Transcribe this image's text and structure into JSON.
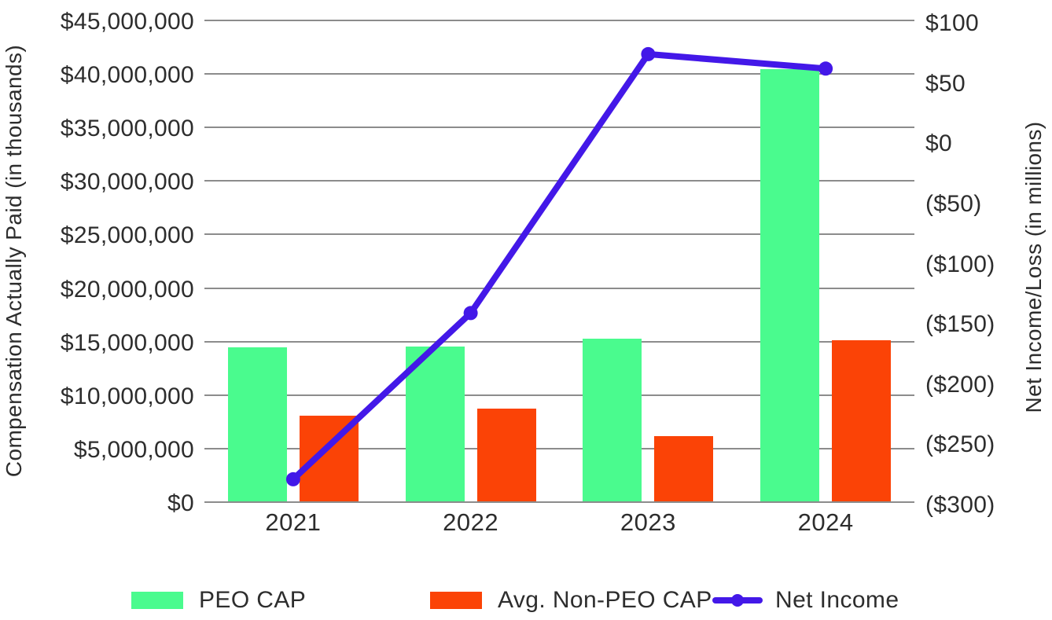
{
  "chart_data": {
    "type": "bar+line combo",
    "categories": [
      "2021",
      "2022",
      "2023",
      "2024"
    ],
    "series": [
      {
        "name": "PEO CAP",
        "type": "bar",
        "axis": "left",
        "color": "#4AFB8E",
        "values": [
          14450000,
          14550000,
          15300000,
          40450000
        ]
      },
      {
        "name": "Avg. Non-PEO CAP",
        "type": "bar",
        "axis": "left",
        "color": "#FB4306",
        "values": [
          8100000,
          8700000,
          6150000,
          15150000
        ]
      },
      {
        "name": "Net Income",
        "type": "line",
        "axis": "right",
        "color": "#4318E8",
        "values": [
          -281,
          -143,
          72,
          60
        ]
      }
    ],
    "left_axis": {
      "label": "Compensation Actually Paid (in thousands)",
      "min": 0,
      "max": 45000000,
      "step": 5000000,
      "tick_labels_top_to_bottom": [
        "$45,000,000",
        "$40,000,000",
        "$35,000,000",
        "$30,000,000",
        "$25,000,000",
        "$20,000,000",
        "$15,000,000",
        "$10,000,000",
        "$5,000,000",
        "$0"
      ]
    },
    "right_axis": {
      "label": "Net Income/Loss (in millions)",
      "min": -300,
      "max": 100,
      "step": 50,
      "tick_labels_top_to_bottom": [
        "$100",
        "$50",
        "$0",
        "($50)",
        "($100)",
        "($150)",
        "($200)",
        "($250)",
        "($300)"
      ]
    },
    "grid": true,
    "legend_position": "bottom",
    "style": {
      "gridline_color": "#8c8c8c",
      "text_color": "#2d2d2d",
      "background": "#ffffff"
    }
  }
}
